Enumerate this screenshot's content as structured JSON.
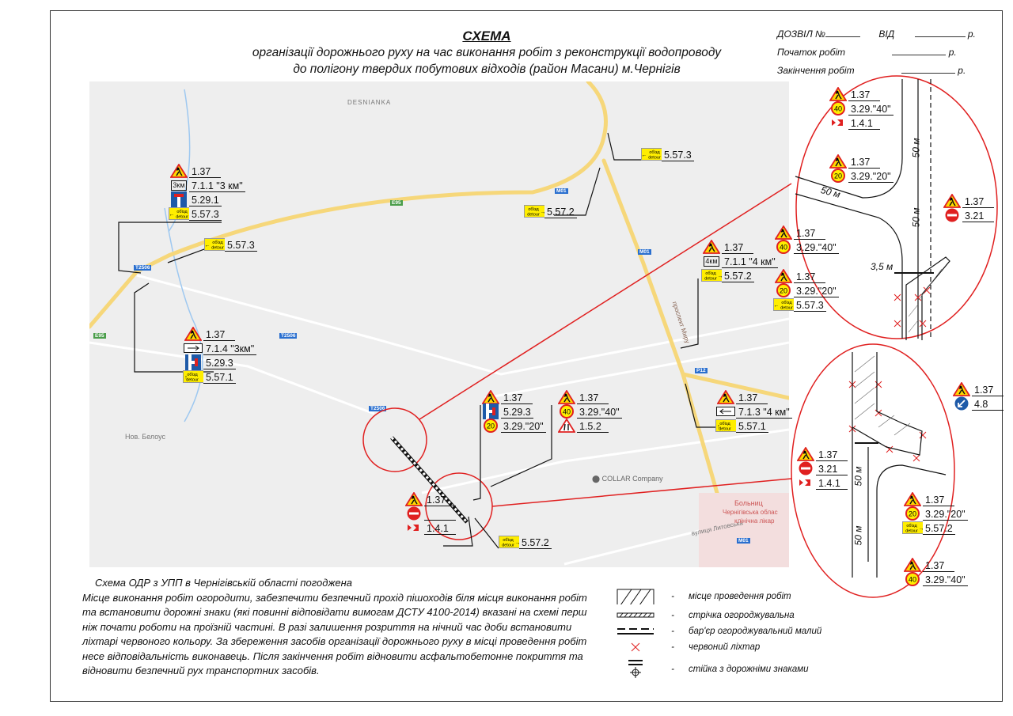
{
  "header": {
    "title": "СХЕМА",
    "subtitle_line1": "організації дорожнього руху на час виконання робіт з реконструкції водопроводу",
    "subtitle_line2": "до полігону твердих побутових відходів (район Масани) м.Чернігів"
  },
  "permit": {
    "permit_label": "ДОЗВІЛ №",
    "from_label": "ВІД",
    "start_label": "Початок робіт",
    "end_label": "Закінчення робіт",
    "year_suffix": "р."
  },
  "map_labels": {
    "district": "DESNIANKA",
    "village": "Нов. Белоус",
    "poi": "COLLAR Company",
    "avenue": "проспект Миру",
    "street": "вулиця Литовська",
    "hospital_1": "Больниц",
    "hospital_2": "Чернігівська облас",
    "hospital_3": "клінічна лікар",
    "road_e95": "E95",
    "road_m01": "M01",
    "road_t2506": "T2506",
    "road_p12": "P12"
  },
  "sign_groups": [
    {
      "id": "north-west",
      "rows": [
        {
          "icon": "roadwork",
          "code": "1.37"
        },
        {
          "icon": "distance-3km",
          "plate": "3км",
          "code": "7.1.1 \"3 км\""
        },
        {
          "icon": "dead-end",
          "code": "5.29.1"
        },
        {
          "icon": "detour-left",
          "code": "5.57.3"
        }
      ]
    },
    {
      "id": "west-junction",
      "rows": [
        {
          "icon": "detour-left",
          "code": "5.57.3"
        }
      ]
    },
    {
      "id": "south-west",
      "rows": [
        {
          "icon": "roadwork",
          "code": "1.37"
        },
        {
          "icon": "direction-arrow",
          "code": "7.1.4 \"3км\""
        },
        {
          "icon": "dead-end-side",
          "code": "5.29.3"
        },
        {
          "icon": "detour-up",
          "code": "5.57.1"
        }
      ]
    },
    {
      "id": "north-ring",
      "rows": [
        {
          "icon": "detour-left",
          "code": "5.57.3"
        }
      ]
    },
    {
      "id": "ring-m01",
      "rows": [
        {
          "icon": "detour-right",
          "code": "5.57.2"
        }
      ]
    },
    {
      "id": "prospekt-north",
      "rows": [
        {
          "icon": "roadwork",
          "code": "1.37"
        },
        {
          "icon": "distance-4km",
          "plate": "4км",
          "code": "7.1.1 \"4 км\""
        },
        {
          "icon": "detour-right",
          "code": "5.57.2"
        }
      ]
    },
    {
      "id": "prospekt-south",
      "rows": [
        {
          "icon": "roadwork",
          "code": "1.37"
        },
        {
          "icon": "direction-arrow-left",
          "code": "7.1.3 \"4 км\""
        },
        {
          "icon": "detour-up",
          "code": "5.57.1"
        }
      ]
    },
    {
      "id": "site-east-a",
      "rows": [
        {
          "icon": "roadwork",
          "code": "1.37"
        },
        {
          "icon": "dead-end-side",
          "code": "5.29.3"
        },
        {
          "icon": "speed-20",
          "code": "3.29.\"20\""
        }
      ]
    },
    {
      "id": "site-east-b",
      "rows": [
        {
          "icon": "roadwork",
          "code": "1.37"
        },
        {
          "icon": "speed-40",
          "code": "3.29.\"40\""
        },
        {
          "icon": "road-narrows",
          "code": "1.5.2"
        }
      ]
    },
    {
      "id": "site-west",
      "rows": [
        {
          "icon": "roadwork",
          "code": "1.37"
        },
        {
          "icon": "no-entry",
          "code": ""
        },
        {
          "icon": "chevron",
          "code": "1.4.1"
        }
      ]
    },
    {
      "id": "site-south",
      "rows": [
        {
          "icon": "detour-right",
          "code": "5.57.2"
        }
      ]
    },
    {
      "id": "detail-a-1",
      "rows": [
        {
          "icon": "roadwork",
          "code": "1.37"
        },
        {
          "icon": "speed-40",
          "code": "3.29.\"40\""
        },
        {
          "icon": "chevron",
          "code": "1.4.1"
        }
      ]
    },
    {
      "id": "detail-a-2",
      "rows": [
        {
          "icon": "roadwork",
          "code": "1.37"
        },
        {
          "icon": "speed-20",
          "code": "3.29.\"20\""
        }
      ]
    },
    {
      "id": "detail-a-3",
      "rows": [
        {
          "icon": "roadwork",
          "code": "1.37"
        },
        {
          "icon": "speed-40",
          "code": "3.29.\"40\""
        }
      ]
    },
    {
      "id": "detail-a-4",
      "rows": [
        {
          "icon": "roadwork",
          "code": "1.37"
        },
        {
          "icon": "speed-20",
          "code": "3.29.\"20\""
        },
        {
          "icon": "detour-left",
          "code": "5.57.3"
        }
      ]
    },
    {
      "id": "detail-a-5",
      "rows": [
        {
          "icon": "roadwork",
          "code": "1.37"
        },
        {
          "icon": "no-entry",
          "code": "3.21"
        }
      ]
    },
    {
      "id": "detail-b-1",
      "rows": [
        {
          "icon": "roadwork",
          "code": "1.37"
        },
        {
          "icon": "keep-left",
          "code": "4.8"
        }
      ]
    },
    {
      "id": "detail-b-2",
      "rows": [
        {
          "icon": "roadwork",
          "code": "1.37"
        },
        {
          "icon": "no-entry",
          "code": "3.21"
        },
        {
          "icon": "chevron",
          "code": "1.4.1"
        }
      ]
    },
    {
      "id": "detail-b-3",
      "rows": [
        {
          "icon": "roadwork",
          "code": "1.37"
        },
        {
          "icon": "speed-20",
          "code": "3.29.\"20\""
        },
        {
          "icon": "detour-right",
          "code": "5.57.2"
        }
      ]
    },
    {
      "id": "detail-b-4",
      "rows": [
        {
          "icon": "roadwork",
          "code": "1.37"
        },
        {
          "icon": "speed-40",
          "code": "3.29.\"40\""
        }
      ]
    }
  ],
  "dimensions": {
    "d1": "50 м",
    "d2": "50 м",
    "d3": "50 м",
    "d4": "3,5 м",
    "d5": "50 м",
    "d6": "50 м"
  },
  "notes": {
    "approval": "Схема ОДР з УПП в Чернігівській області погоджена",
    "body": "Місце виконання робіт огородити, забезпечити безпечний прохід пішоходів біля місця виконання робіт та встановити дорожні знаки  (які повинні відповідати вимогам ДСТУ 4100-2014) вказані на схемі перш ніж почати роботи на проїзній частині. В разі залишення розриття на нічний час доби встановити ліхтарі червоного кольору. За збереження засобів організації дорожнього руху в місці проведення робіт несе відповідальність виконавець. Після закінчення робіт відновити асфальтобетонне покриття та відновити безпечний рух транспортних засобів."
  },
  "legend": {
    "dash": "-",
    "items": [
      {
        "symbol": "hatched-area",
        "label": "місце проведення робіт"
      },
      {
        "symbol": "tape",
        "label": "стрічка огороджувальна"
      },
      {
        "symbol": "barrier",
        "label": "бар'єр огороджувальний малий"
      },
      {
        "symbol": "red-lamp",
        "label": "червоний ліхтар"
      },
      {
        "symbol": "sign-post",
        "label": "стійка з дорожніми знаками"
      }
    ]
  },
  "colors": {
    "accent_red": "#e02020",
    "road_yellow": "#f6d77a",
    "map_bg": "#eeeeee",
    "sign_yellow": "#ffee00",
    "sign_blue": "#1e5aa8"
  }
}
